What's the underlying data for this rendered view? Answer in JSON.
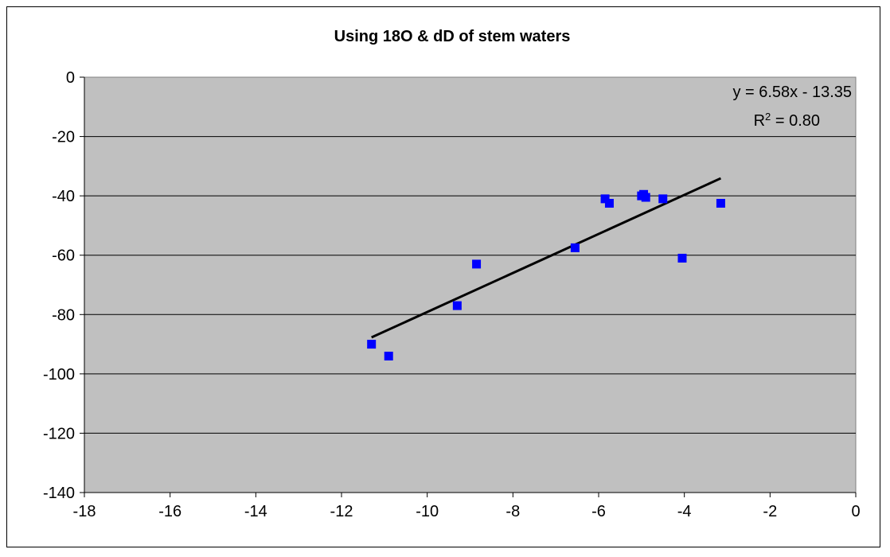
{
  "chart_data": {
    "type": "scatter",
    "title": "Using 18O & dD of stem waters",
    "xlabel": "",
    "ylabel": "",
    "xlim": [
      -18,
      0
    ],
    "ylim": [
      -140,
      0
    ],
    "x_ticks": [
      -18,
      -16,
      -14,
      -12,
      -10,
      -8,
      -6,
      -4,
      -2,
      0
    ],
    "y_ticks": [
      0,
      -20,
      -40,
      -60,
      -80,
      -100,
      -120,
      -140
    ],
    "grid": "horizontal",
    "plot_background": "#c0c0c0",
    "marker_color": "#0000ff",
    "series": [
      {
        "points": [
          {
            "x": -11.3,
            "y": -90
          },
          {
            "x": -10.9,
            "y": -94
          },
          {
            "x": -9.3,
            "y": -77
          },
          {
            "x": -8.85,
            "y": -63
          },
          {
            "x": -6.55,
            "y": -57.5
          },
          {
            "x": -5.85,
            "y": -41
          },
          {
            "x": -5.75,
            "y": -42.5
          },
          {
            "x": -5.0,
            "y": -40
          },
          {
            "x": -4.95,
            "y": -39.5
          },
          {
            "x": -4.9,
            "y": -40.5
          },
          {
            "x": -4.5,
            "y": -41
          },
          {
            "x": -4.05,
            "y": -61
          },
          {
            "x": -3.15,
            "y": -42.5
          }
        ]
      }
    ],
    "trendline": {
      "slope": 6.58,
      "intercept": -13.35,
      "x_range": [
        -11.3,
        -3.15
      ],
      "equation": "y = 6.58x - 13.35",
      "r2_label": "R",
      "r2_sup": "2",
      "r2_value": " = 0.80",
      "color": "#000000"
    }
  }
}
